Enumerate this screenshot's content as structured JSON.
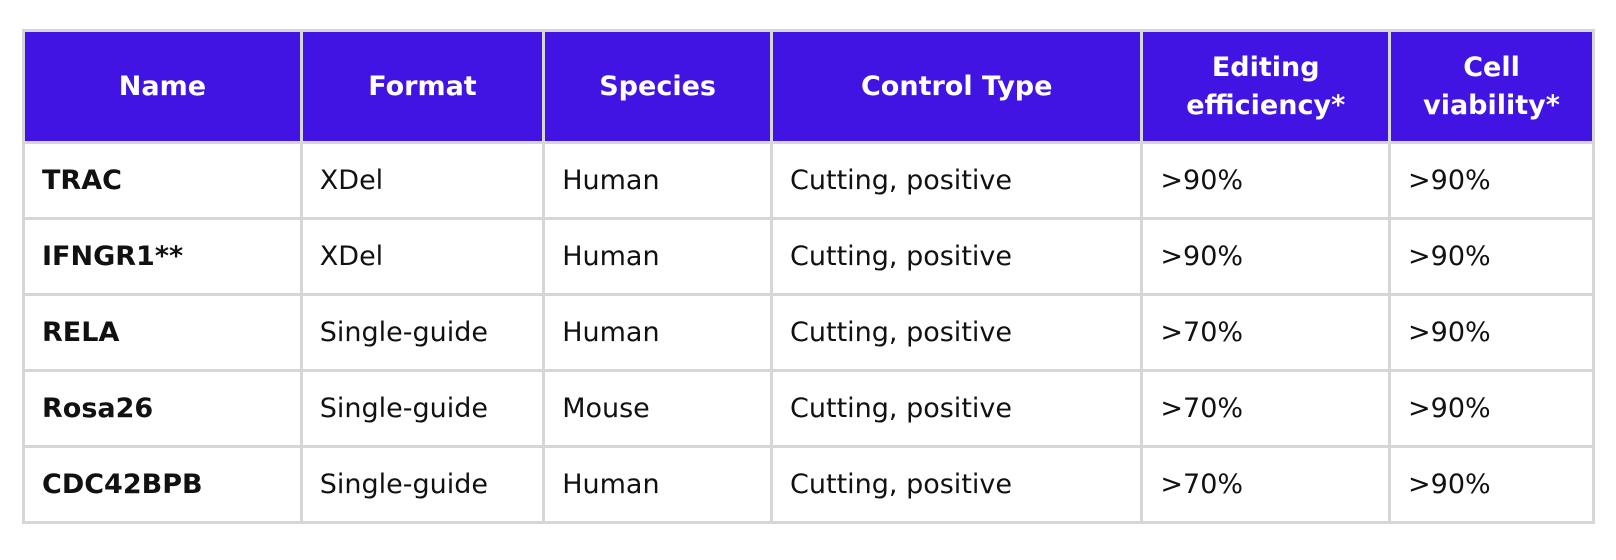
{
  "table": {
    "headers": [
      {
        "lines": [
          "Name"
        ]
      },
      {
        "lines": [
          "Format"
        ]
      },
      {
        "lines": [
          "Species"
        ]
      },
      {
        "lines": [
          "Control Type"
        ]
      },
      {
        "lines": [
          "Editing",
          "efficiency*"
        ]
      },
      {
        "lines": [
          "Cell",
          "viability*"
        ]
      }
    ],
    "rows": [
      {
        "name": "TRAC",
        "format": "XDel",
        "species": "Human",
        "control_type": "Cutting, positive",
        "editing_efficiency": ">90%",
        "cell_viability": ">90%"
      },
      {
        "name": "IFNGR1**",
        "format": "XDel",
        "species": "Human",
        "control_type": "Cutting, positive",
        "editing_efficiency": ">90%",
        "cell_viability": ">90%"
      },
      {
        "name": "RELA",
        "format": "Single-guide",
        "species": "Human",
        "control_type": "Cutting, positive",
        "editing_efficiency": ">70%",
        "cell_viability": ">90%"
      },
      {
        "name": "Rosa26",
        "format": "Single-guide",
        "species": "Mouse",
        "control_type": "Cutting, positive",
        "editing_efficiency": ">70%",
        "cell_viability": ">90%"
      },
      {
        "name": "CDC42BPB",
        "format": "Single-guide",
        "species": "Human",
        "control_type": "Cutting, positive",
        "editing_efficiency": ">70%",
        "cell_viability": ">90%"
      }
    ]
  },
  "colors": {
    "header_background": "#4114e4",
    "header_text": "#ffffff",
    "border": "#d6d6d6",
    "cell_text": "#111111"
  }
}
